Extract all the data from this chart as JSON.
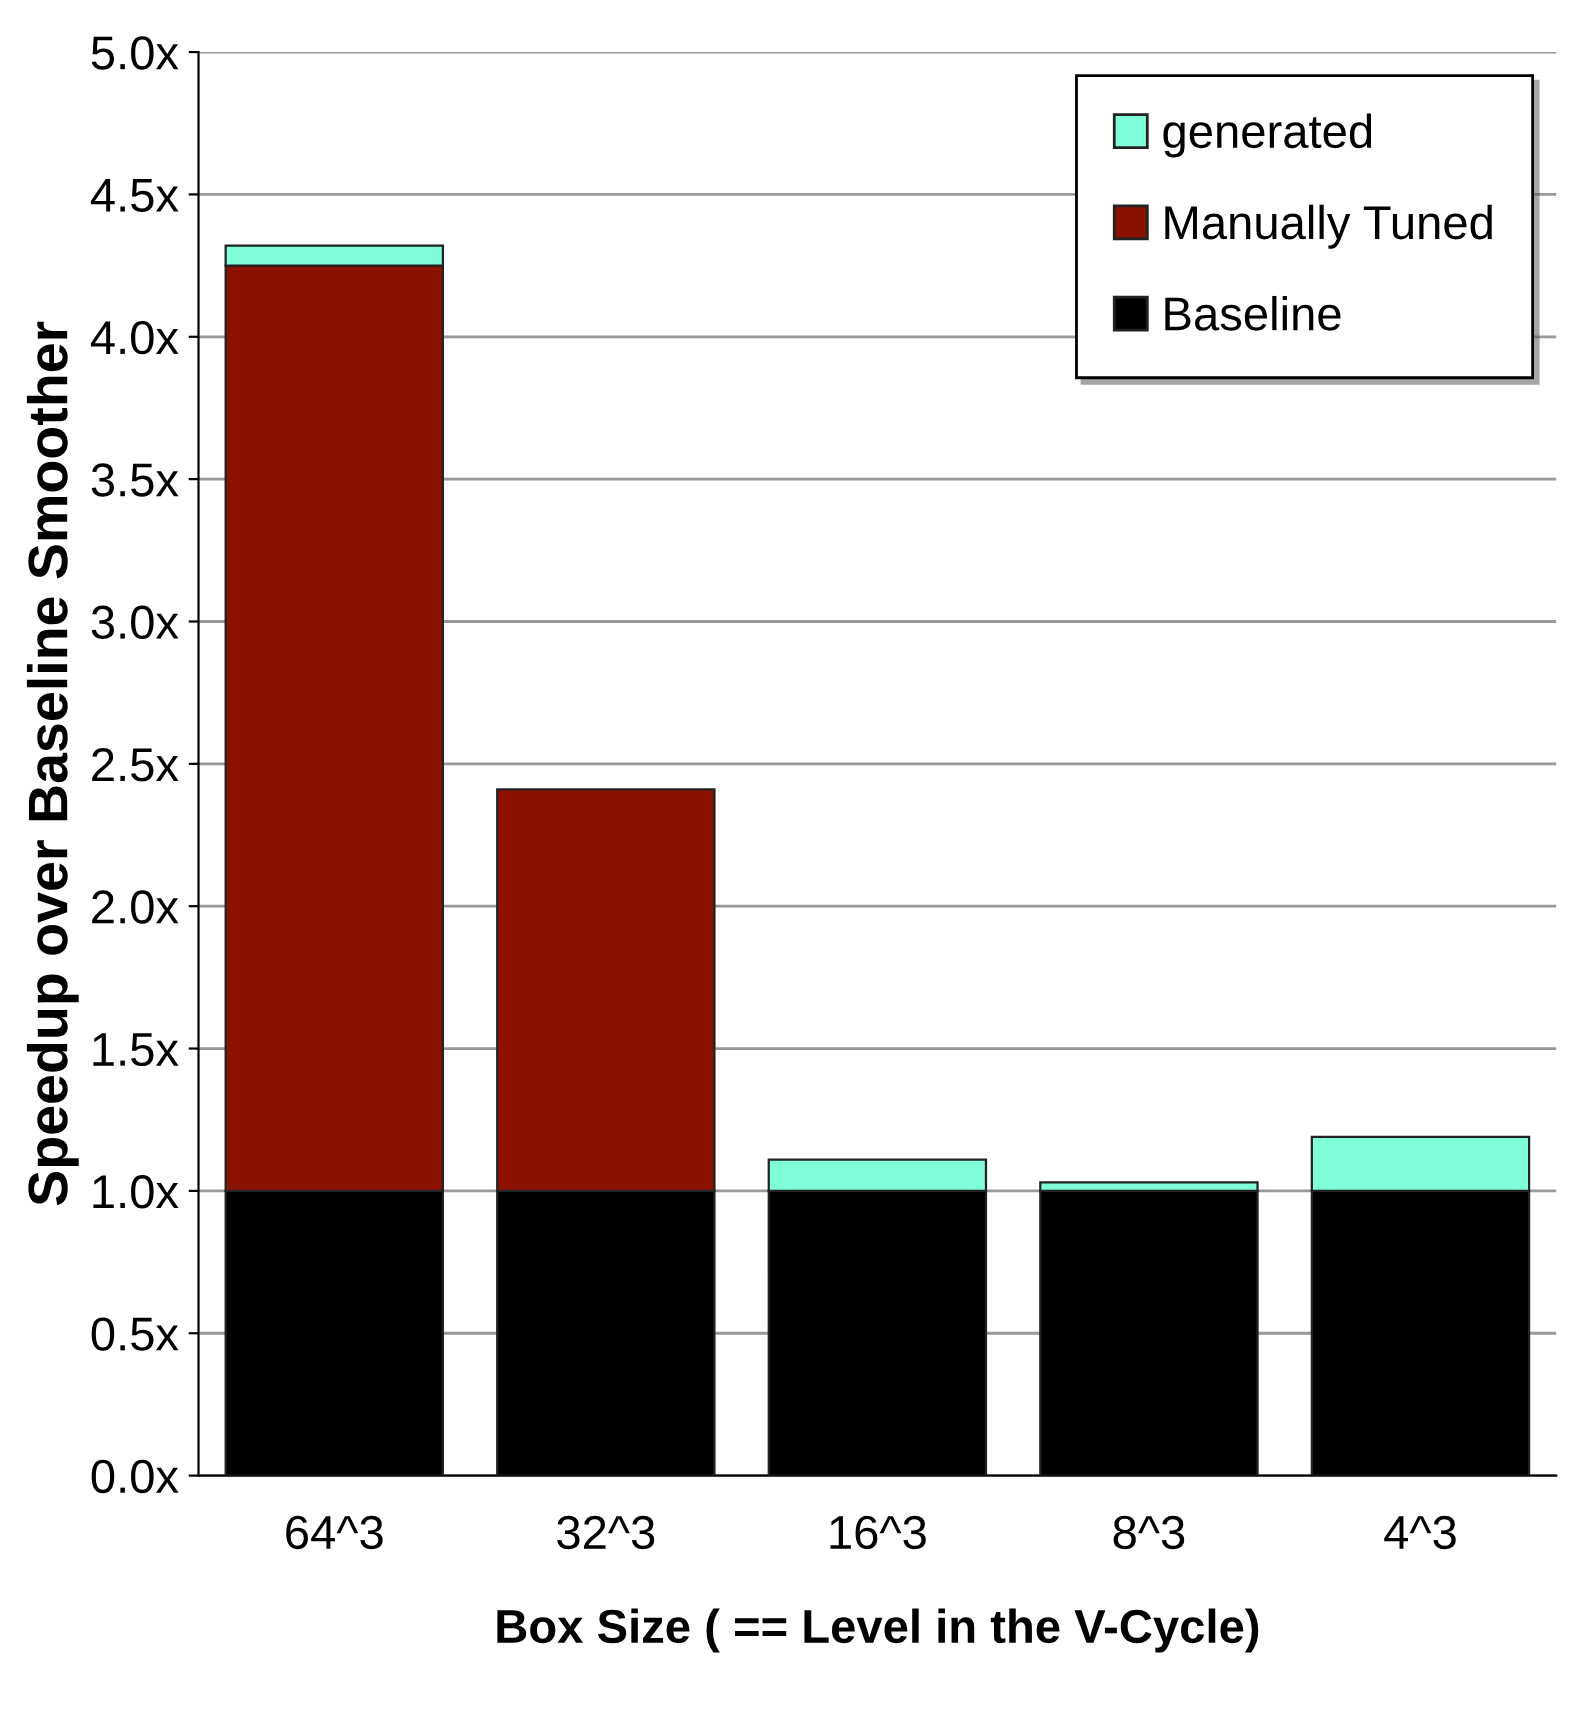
{
  "chart_data": {
    "type": "bar",
    "stacked": true,
    "xlabel": "Box Size ( == Level in the V-Cycle)",
    "ylabel": "Speedup over Baseline Smoother",
    "categories": [
      "64^3",
      "32^3",
      "16^3",
      "8^3",
      "4^3"
    ],
    "series": [
      {
        "name": "Baseline",
        "color": "#000000",
        "values": [
          1.0,
          1.0,
          1.0,
          1.0,
          1.0
        ]
      },
      {
        "name": "Manually Tuned",
        "color": "#8b1200",
        "values": [
          3.25,
          1.41,
          null,
          null,
          null
        ]
      },
      {
        "name": "generated",
        "color": "#7ffcd8",
        "values": [
          0.07,
          null,
          0.11,
          0.03,
          0.19
        ]
      }
    ],
    "ylim": [
      0,
      5
    ],
    "yticks": [
      {
        "value": 0,
        "label": "0.0x"
      },
      {
        "value": 0.5,
        "label": "0.5x"
      },
      {
        "value": 1,
        "label": "1.0x"
      },
      {
        "value": 1.5,
        "label": "1.5x"
      },
      {
        "value": 2,
        "label": "2.0x"
      },
      {
        "value": 2.5,
        "label": "2.5x"
      },
      {
        "value": 3,
        "label": "3.0x"
      },
      {
        "value": 3.5,
        "label": "3.5x"
      },
      {
        "value": 4,
        "label": "4.0x"
      },
      {
        "value": 4.5,
        "label": "4.5x"
      },
      {
        "value": 5,
        "label": "5.0x"
      }
    ],
    "grid": "y",
    "legend": "top right"
  }
}
